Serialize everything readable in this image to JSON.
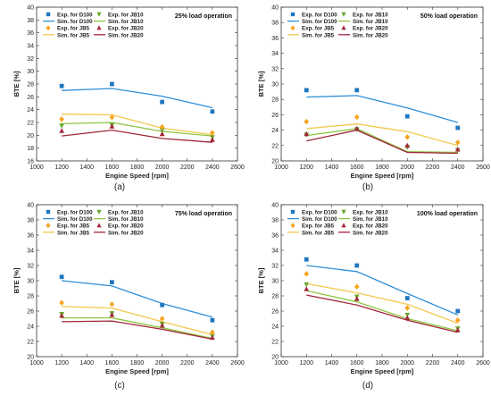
{
  "chart_data": [
    {
      "type": "line",
      "caption": "(a)",
      "title": "25% load operation",
      "xlabel": "Engine Speed [rpm]",
      "ylabel": "BTE [%]",
      "xlim": [
        1000,
        2600
      ],
      "ylim": [
        16,
        40
      ],
      "xticks": [
        1000,
        1200,
        1400,
        1600,
        1800,
        2000,
        2200,
        2400,
        2600
      ],
      "yticks": [
        16,
        18,
        20,
        22,
        24,
        26,
        28,
        30,
        32,
        34,
        36,
        38,
        40
      ],
      "x": [
        1200,
        1600,
        2000,
        2400
      ],
      "legend_placement": "top-left",
      "grid": false,
      "series": [
        {
          "name": "Exp. for D100",
          "kind": "experimental",
          "marker": "square",
          "color": "#1f77c0",
          "values": [
            27.7,
            28.0,
            25.2,
            23.7
          ]
        },
        {
          "name": "Exp. for JB10",
          "kind": "experimental",
          "marker": "triangle-down",
          "color": "#6aa82e",
          "values": [
            21.5,
            21.6,
            20.8,
            19.7
          ]
        },
        {
          "name": "Sim. for D100",
          "kind": "simulation",
          "color": "#2f8fd8",
          "values": [
            27.0,
            27.3,
            26.1,
            24.3
          ]
        },
        {
          "name": "Sim. for JB10",
          "kind": "simulation",
          "color": "#8dc63f",
          "values": [
            21.8,
            22.0,
            20.6,
            19.9
          ]
        },
        {
          "name": "Exp. for JB5",
          "kind": "experimental",
          "marker": "diamond",
          "color": "#f5a623",
          "values": [
            22.5,
            22.8,
            21.3,
            20.4
          ]
        },
        {
          "name": "Exp. for JB20",
          "kind": "experimental",
          "marker": "triangle-up",
          "color": "#a3283a",
          "values": [
            20.7,
            21.4,
            20.2,
            19.3
          ]
        },
        {
          "name": "Sim. for JB5",
          "kind": "simulation",
          "color": "#f2c84b",
          "values": [
            23.3,
            23.2,
            21.1,
            20.1
          ]
        },
        {
          "name": "Sim. for JB20",
          "kind": "simulation",
          "color": "#a0243a",
          "values": [
            19.9,
            20.8,
            19.5,
            18.9
          ]
        }
      ]
    },
    {
      "type": "line",
      "caption": "(b)",
      "title": "50% load operation",
      "xlabel": "Engine Speed [rpm]",
      "ylabel": "BTE [%]",
      "xlim": [
        1000,
        2600
      ],
      "ylim": [
        20,
        40
      ],
      "xticks": [
        1000,
        1200,
        1400,
        1600,
        1800,
        2000,
        2200,
        2400,
        2600
      ],
      "yticks": [
        20,
        22,
        24,
        26,
        28,
        30,
        32,
        34,
        36,
        38,
        40
      ],
      "x": [
        1200,
        1600,
        2000,
        2400
      ],
      "legend_placement": "top-left",
      "grid": false,
      "series": [
        {
          "name": "Exp. for D100",
          "kind": "experimental",
          "marker": "square",
          "color": "#1f77c0",
          "values": [
            29.2,
            29.2,
            25.8,
            24.3
          ]
        },
        {
          "name": "Exp. for JB10",
          "kind": "experimental",
          "marker": "triangle-down",
          "color": "#6aa82e",
          "values": [
            23.4,
            24.1,
            21.8,
            21.4
          ]
        },
        {
          "name": "Sim. for D100",
          "kind": "simulation",
          "color": "#2f8fd8",
          "values": [
            28.3,
            28.5,
            26.9,
            25.0
          ]
        },
        {
          "name": "Sim. for JB10",
          "kind": "simulation",
          "color": "#8dc63f",
          "values": [
            23.3,
            24.2,
            21.2,
            21.1
          ]
        },
        {
          "name": "Exp. for JB5",
          "kind": "experimental",
          "marker": "diamond",
          "color": "#f5a623",
          "values": [
            25.1,
            25.7,
            23.1,
            22.4
          ]
        },
        {
          "name": "Exp. for JB20",
          "kind": "experimental",
          "marker": "triangle-up",
          "color": "#a3283a",
          "values": [
            23.5,
            24.2,
            22.0,
            21.5
          ]
        },
        {
          "name": "Sim. for JB5",
          "kind": "simulation",
          "color": "#f2c84b",
          "values": [
            24.2,
            24.8,
            23.8,
            22.0
          ]
        },
        {
          "name": "Sim. for JB20",
          "kind": "simulation",
          "color": "#a0243a",
          "values": [
            22.6,
            24.0,
            21.1,
            21.0
          ]
        }
      ]
    },
    {
      "type": "line",
      "caption": "(c)",
      "title": "75% load operation",
      "xlabel": "Engine Speed [rpm]",
      "ylabel": "BTE [%]",
      "xlim": [
        1000,
        2600
      ],
      "ylim": [
        20,
        40
      ],
      "xticks": [
        1000,
        1200,
        1400,
        1600,
        1800,
        2000,
        2200,
        2400,
        2600
      ],
      "yticks": [
        20,
        22,
        24,
        26,
        28,
        30,
        32,
        34,
        36,
        38,
        40
      ],
      "x": [
        1200,
        1600,
        2000,
        2400
      ],
      "legend_placement": "top-left",
      "grid": false,
      "series": [
        {
          "name": "Exp. for D100",
          "kind": "experimental",
          "marker": "square",
          "color": "#1f77c0",
          "values": [
            30.5,
            29.8,
            26.8,
            24.8
          ]
        },
        {
          "name": "Exp. for JB10",
          "kind": "experimental",
          "marker": "triangle-down",
          "color": "#6aa82e",
          "values": [
            25.6,
            25.7,
            24.3,
            22.7
          ]
        },
        {
          "name": "Sim. for D100",
          "kind": "simulation",
          "color": "#2f8fd8",
          "values": [
            30.0,
            29.3,
            27.0,
            25.2
          ]
        },
        {
          "name": "Sim. for JB10",
          "kind": "simulation",
          "color": "#8dc63f",
          "values": [
            25.1,
            25.1,
            23.8,
            22.4
          ]
        },
        {
          "name": "Exp. for JB5",
          "kind": "experimental",
          "marker": "diamond",
          "color": "#f5a623",
          "values": [
            27.1,
            26.9,
            25.0,
            23.2
          ]
        },
        {
          "name": "Exp. for JB20",
          "kind": "experimental",
          "marker": "triangle-up",
          "color": "#a3283a",
          "values": [
            25.4,
            25.5,
            24.1,
            22.5
          ]
        },
        {
          "name": "Sim. for JB5",
          "kind": "simulation",
          "color": "#f2c84b",
          "values": [
            26.6,
            26.4,
            24.6,
            22.9
          ]
        },
        {
          "name": "Sim. for JB20",
          "kind": "simulation",
          "color": "#a0243a",
          "values": [
            24.6,
            24.7,
            23.6,
            22.3
          ]
        }
      ]
    },
    {
      "type": "line",
      "caption": "(d)",
      "title": "100% load operation",
      "xlabel": "Engine Speed [rpm]",
      "ylabel": "BTE [%]",
      "xlim": [
        1000,
        2600
      ],
      "ylim": [
        20,
        40
      ],
      "xticks": [
        1000,
        1200,
        1400,
        1600,
        1800,
        2000,
        2200,
        2400,
        2600
      ],
      "yticks": [
        20,
        22,
        24,
        26,
        28,
        30,
        32,
        34,
        36,
        38,
        40
      ],
      "x": [
        1200,
        1600,
        2000,
        2400
      ],
      "legend_placement": "top-left",
      "grid": false,
      "series": [
        {
          "name": "Exp. for D100",
          "kind": "experimental",
          "marker": "square",
          "color": "#1f77c0",
          "values": [
            32.8,
            32.0,
            27.7,
            26.0
          ]
        },
        {
          "name": "Exp. for JB10",
          "kind": "experimental",
          "marker": "triangle-down",
          "color": "#6aa82e",
          "values": [
            29.5,
            27.9,
            25.5,
            23.7
          ]
        },
        {
          "name": "Sim. for D100",
          "kind": "simulation",
          "color": "#2f8fd8",
          "values": [
            32.0,
            31.2,
            28.3,
            25.5
          ]
        },
        {
          "name": "Sim. for JB10",
          "kind": "simulation",
          "color": "#8dc63f",
          "values": [
            28.7,
            27.2,
            25.0,
            23.4
          ]
        },
        {
          "name": "Exp. for JB5",
          "kind": "experimental",
          "marker": "diamond",
          "color": "#f5a623",
          "values": [
            30.9,
            29.2,
            26.4,
            24.8
          ]
        },
        {
          "name": "Exp. for JB20",
          "kind": "experimental",
          "marker": "triangle-up",
          "color": "#a3283a",
          "values": [
            28.9,
            27.6,
            25.1,
            23.5
          ]
        },
        {
          "name": "Sim. for JB5",
          "kind": "simulation",
          "color": "#f2c84b",
          "values": [
            29.6,
            28.4,
            26.9,
            24.4
          ]
        },
        {
          "name": "Sim. for JB20",
          "kind": "simulation",
          "color": "#a0243a",
          "values": [
            28.1,
            26.8,
            24.8,
            23.2
          ]
        }
      ]
    }
  ]
}
